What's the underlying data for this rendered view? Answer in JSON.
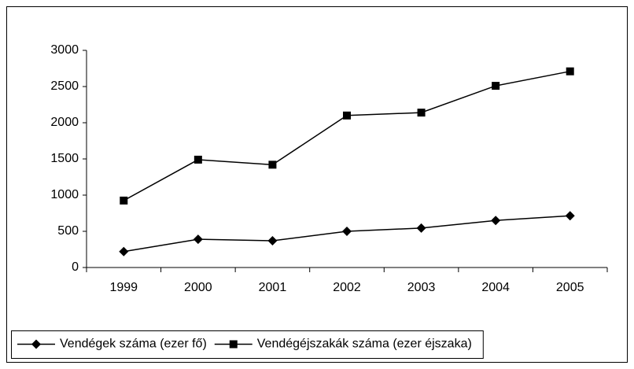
{
  "chart_data": {
    "type": "line",
    "categories": [
      "1999",
      "2000",
      "2001",
      "2002",
      "2003",
      "2004",
      "2005"
    ],
    "series": [
      {
        "name": "Vendégek száma (ezer fő)",
        "color": "#000000",
        "marker": "diamond",
        "values": [
          220,
          390,
          370,
          500,
          545,
          650,
          715
        ]
      },
      {
        "name": "Vendégéjszakák száma (ezer éjszaka)",
        "color": "#000000",
        "marker": "square",
        "values": [
          925,
          1490,
          1420,
          2100,
          2140,
          2510,
          2710
        ]
      }
    ],
    "ylim": [
      0,
      3000
    ],
    "yticks": [
      0,
      500,
      1000,
      1500,
      2000,
      2500,
      3000
    ],
    "grid": false,
    "legend": "bottom"
  }
}
